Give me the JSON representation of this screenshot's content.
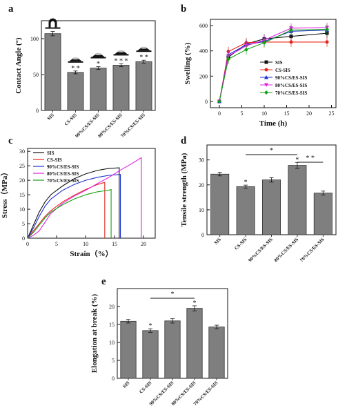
{
  "chart_data": [
    {
      "panel": "a",
      "type": "bar",
      "ylabel": "Contact Angle (°)",
      "categories": [
        "SIS",
        "CS-SIS",
        "90%CS/ES-SIS",
        "80%CS/ES-SIS",
        "70%CS/ES-SIS"
      ],
      "values": [
        107,
        53,
        59,
        63,
        68
      ],
      "errors": [
        3,
        2,
        2,
        2,
        2
      ],
      "ylim": [
        0,
        125
      ],
      "yticks": [
        0,
        50,
        100
      ],
      "significance": [
        "",
        "* *",
        "*",
        "* * *",
        "* *"
      ],
      "icons": "droplet-shape-icon above each bar"
    },
    {
      "panel": "b",
      "type": "line",
      "xlabel": "Time (h)",
      "ylabel": "Swelling (%)",
      "x": [
        0,
        2,
        6,
        10,
        16,
        24
      ],
      "xlim": [
        -2,
        26
      ],
      "ylim": [
        -50,
        650
      ],
      "xticks": [
        0,
        5,
        10,
        15,
        20,
        25
      ],
      "yticks": [
        0,
        200,
        400,
        600
      ],
      "legend_position": "center-right",
      "series": [
        {
          "name": "SIS",
          "color": "#111111",
          "marker": "square",
          "values": [
            0,
            350,
            455,
            495,
            515,
            540
          ]
        },
        {
          "name": "CS-SIS",
          "color": "#e8251b",
          "marker": "circle",
          "values": [
            0,
            395,
            465,
            470,
            470,
            470
          ]
        },
        {
          "name": "90%CS/ES-SIS",
          "color": "#1c2ed0",
          "marker": "triangle-up",
          "values": [
            0,
            370,
            448,
            475,
            555,
            565
          ]
        },
        {
          "name": "80%CS/ES-SIS",
          "color": "#e020e0",
          "marker": "triangle-down",
          "values": [
            0,
            360,
            440,
            485,
            580,
            585
          ]
        },
        {
          "name": "70%CS/ES-SIS",
          "color": "#12a012",
          "marker": "diamond",
          "values": [
            0,
            335,
            410,
            465,
            565,
            570
          ]
        }
      ]
    },
    {
      "panel": "c",
      "type": "line",
      "xlabel": "Strain（%）",
      "ylabel": "Stress（MPa）",
      "xlim": [
        0,
        22
      ],
      "ylim": [
        0,
        31
      ],
      "xticks": [
        0,
        5,
        10,
        15,
        20
      ],
      "yticks": [
        0,
        5,
        10,
        15,
        20,
        25,
        30
      ],
      "legend_position": "top-left",
      "series": [
        {
          "name": "SIS",
          "color": "#111111",
          "break_at": 15.8,
          "points": [
            [
              0,
              0
            ],
            [
              1,
              4.5
            ],
            [
              2,
              9
            ],
            [
              3,
              12.5
            ],
            [
              4,
              15
            ],
            [
              6,
              18
            ],
            [
              8,
              20.5
            ],
            [
              10,
              22.2
            ],
            [
              12,
              23.4
            ],
            [
              14,
              24.1
            ],
            [
              15.8,
              24.3
            ]
          ]
        },
        {
          "name": "CS-SIS",
          "color": "#e8251b",
          "break_at": 13.3,
          "points": [
            [
              0,
              0
            ],
            [
              1,
              2.5
            ],
            [
              2,
              5
            ],
            [
              3,
              7.5
            ],
            [
              4,
              9.5
            ],
            [
              6,
              12.5
            ],
            [
              8,
              14.8
            ],
            [
              10,
              16.8
            ],
            [
              12,
              18.5
            ],
            [
              13.3,
              19.3
            ]
          ]
        },
        {
          "name": "90%CS/ES-SIS",
          "color": "#1c2ed0",
          "break_at": 16.0,
          "points": [
            [
              0,
              0
            ],
            [
              1,
              3.5
            ],
            [
              2,
              7.5
            ],
            [
              3,
              11
            ],
            [
              4,
              13.5
            ],
            [
              6,
              16.5
            ],
            [
              8,
              18.5
            ],
            [
              10,
              20
            ],
            [
              12,
              21
            ],
            [
              14,
              21.7
            ],
            [
              16.0,
              22.0
            ]
          ]
        },
        {
          "name": "80%CS/ES-SIS",
          "color": "#e020e0",
          "break_at": 19.6,
          "points": [
            [
              0,
              0
            ],
            [
              1,
              1
            ],
            [
              2,
              2.5
            ],
            [
              3,
              5.5
            ],
            [
              4,
              8.5
            ],
            [
              6,
              12
            ],
            [
              8,
              14.5
            ],
            [
              10,
              16.5
            ],
            [
              12,
              18.8
            ],
            [
              14,
              21
            ],
            [
              16,
              23.5
            ],
            [
              18,
              25.8
            ],
            [
              19.6,
              27.8
            ]
          ]
        },
        {
          "name": "70%CS/ES-SIS",
          "color": "#12a012",
          "break_at": 14.4,
          "points": [
            [
              0,
              0
            ],
            [
              1,
              2
            ],
            [
              2,
              4.5
            ],
            [
              3,
              7
            ],
            [
              4,
              9
            ],
            [
              6,
              11.5
            ],
            [
              8,
              13.5
            ],
            [
              10,
              15
            ],
            [
              12,
              16
            ],
            [
              14,
              16.6
            ],
            [
              14.4,
              16.8
            ]
          ]
        }
      ]
    },
    {
      "panel": "d",
      "type": "bar",
      "ylabel": "Tensile strength (MPa)",
      "categories": [
        "SIS",
        "CS-SIS",
        "90%CS/ES-SIS",
        "80%CS/ES-SIS",
        "70%CS/ES-SIS"
      ],
      "values": [
        24.3,
        19.3,
        22.0,
        27.8,
        16.7
      ],
      "errors": [
        0.7,
        0.6,
        0.9,
        1.2,
        0.8
      ],
      "ylim": [
        0,
        36
      ],
      "yticks": [
        0,
        10,
        20,
        30
      ],
      "significance": [
        "",
        "*",
        "",
        "*",
        ""
      ],
      "brackets": [
        {
          "from": 1,
          "to": 3,
          "label": "*"
        },
        {
          "from": 3,
          "to": 4,
          "label": "* *"
        }
      ]
    },
    {
      "panel": "e",
      "type": "bar",
      "ylabel": "Elongation at break (%)",
      "categories": [
        "SIS",
        "CS-SIS",
        "90%CS/ES-SIS",
        "80%CS/ES-SIS",
        "70%CS/ES-SIS"
      ],
      "values": [
        15.9,
        13.3,
        16.0,
        19.5,
        14.3
      ],
      "errors": [
        0.5,
        0.5,
        0.6,
        0.7,
        0.5
      ],
      "ylim": [
        0,
        25
      ],
      "yticks": [
        0,
        5,
        10,
        15,
        20
      ],
      "significance": [
        "",
        "*",
        "",
        "*",
        ""
      ],
      "brackets": [
        {
          "from": 1,
          "to": 3,
          "label": "*"
        }
      ]
    }
  ]
}
